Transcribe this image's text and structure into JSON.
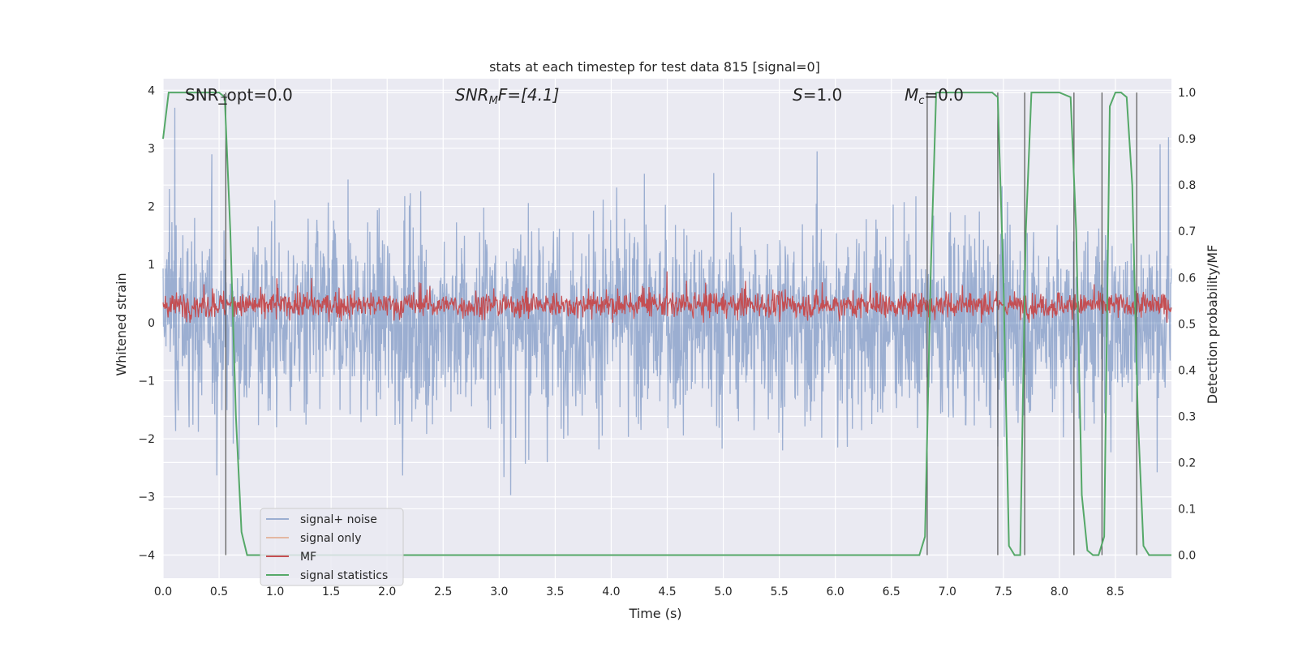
{
  "chart_data": {
    "type": "line",
    "title": "stats at each timestep for test data 815 [signal=0]",
    "xlabel": "Time (s)",
    "ylabel_left": "Whitened strain",
    "ylabel_right": "Detection probability/MF",
    "xlim": [
      0.0,
      9.0
    ],
    "ylim_left": [
      -4.4,
      4.2
    ],
    "ylim_right": [
      -0.05,
      1.03
    ],
    "xticks": [
      "0.0",
      "0.5",
      "1.0",
      "1.5",
      "2.0",
      "2.5",
      "3.0",
      "3.5",
      "4.0",
      "4.5",
      "5.0",
      "5.5",
      "6.0",
      "6.5",
      "7.0",
      "7.5",
      "8.0",
      "8.5"
    ],
    "xtick_values": [
      0.0,
      0.5,
      1.0,
      1.5,
      2.0,
      2.5,
      3.0,
      3.5,
      4.0,
      4.5,
      5.0,
      5.5,
      6.0,
      6.5,
      7.0,
      7.5,
      8.0,
      8.5
    ],
    "yticks_left": [
      "−4",
      "−3",
      "−2",
      "−1",
      "0",
      "1",
      "2",
      "3",
      "4"
    ],
    "ytick_left_values": [
      -4,
      -3,
      -2,
      -1,
      0,
      1,
      2,
      3,
      4
    ],
    "yticks_right": [
      "0.0",
      "0.1",
      "0.2",
      "0.3",
      "0.4",
      "0.5",
      "0.6",
      "0.7",
      "0.8",
      "0.9",
      "1.0"
    ],
    "ytick_right_values": [
      0.0,
      0.1,
      0.2,
      0.3,
      0.4,
      0.5,
      0.6,
      0.7,
      0.8,
      0.9,
      1.0
    ],
    "grid": true,
    "legend_position": "lower-left",
    "annotations": {
      "snr_opt": "SNR_opt=0.0",
      "snr_mf_base": "SNR",
      "snr_mf_sub": "M",
      "snr_mf_rest": "F=[4.1]",
      "s_main": "S",
      "s_rest": "=1.0",
      "mc_main": "M",
      "mc_sub": "c",
      "mc_rest": "=0.0"
    },
    "series": [
      {
        "name": "signal+ noise",
        "color": "#4c72b0",
        "alpha": 0.5,
        "axis": "left",
        "description_values": "noise, approx within [-4, 4]"
      },
      {
        "name": "signal only",
        "color": "#dd8452",
        "alpha": 0.5,
        "axis": "left",
        "values": []
      },
      {
        "name": "MF",
        "color": "#c44e52",
        "axis": "left",
        "range_approx": [
          0.0,
          0.95
        ]
      },
      {
        "name": "signal statistics",
        "color": "#55a868",
        "axis": "right",
        "x": [
          0.0,
          0.05,
          0.1,
          0.2,
          0.3,
          0.4,
          0.5,
          0.55,
          0.6,
          0.65,
          0.7,
          0.75,
          0.8,
          1.0,
          2.0,
          3.0,
          4.0,
          5.0,
          6.0,
          6.75,
          6.8,
          6.85,
          6.9,
          7.0,
          7.2,
          7.4,
          7.45,
          7.5,
          7.55,
          7.6,
          7.65,
          7.7,
          7.75,
          7.8,
          7.9,
          8.0,
          8.1,
          8.15,
          8.2,
          8.25,
          8.3,
          8.35,
          8.4,
          8.45,
          8.5,
          8.55,
          8.6,
          8.65,
          8.7,
          8.75,
          8.8,
          8.9,
          9.0
        ],
        "y": [
          0.9,
          1.0,
          1.0,
          1.0,
          1.0,
          1.0,
          1.0,
          0.99,
          0.7,
          0.3,
          0.05,
          0.0,
          0.0,
          0.0,
          0.0,
          0.0,
          0.0,
          0.0,
          0.0,
          0.0,
          0.04,
          0.6,
          1.0,
          1.0,
          1.0,
          1.0,
          0.99,
          0.6,
          0.02,
          0.0,
          0.0,
          0.7,
          1.0,
          1.0,
          1.0,
          1.0,
          0.99,
          0.7,
          0.13,
          0.01,
          0.0,
          0.0,
          0.04,
          0.97,
          1.0,
          1.0,
          0.99,
          0.8,
          0.3,
          0.02,
          0.0,
          0.0,
          0.0
        ]
      }
    ],
    "vertical_lines_x": [
      0.56,
      6.82,
      7.45,
      7.69,
      8.13,
      8.38,
      8.69
    ],
    "legend_entries": [
      {
        "label": "signal+ noise",
        "color": "#4c72b0",
        "alpha": 0.5
      },
      {
        "label": "signal only",
        "color": "#dd8452",
        "alpha": 0.5
      },
      {
        "label": "MF",
        "color": "#c44e52",
        "alpha": 1
      },
      {
        "label": "signal statistics",
        "color": "#55a868",
        "alpha": 1
      }
    ]
  }
}
